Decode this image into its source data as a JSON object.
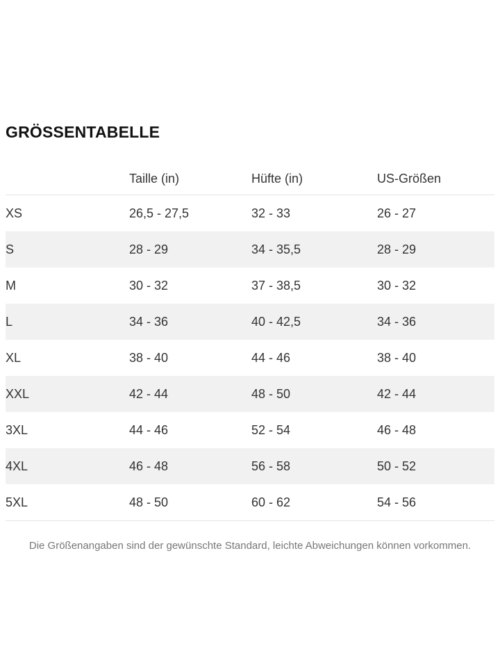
{
  "page": {
    "title": "GRÖSSENTABELLE",
    "footer_note": "Die Größenangaben sind der gewünschte Standard, leichte Abweichungen können vorkommen."
  },
  "table": {
    "headers": [
      "",
      "Taille (in)",
      "Hüfte (in)",
      "US-Größen"
    ],
    "rows": [
      {
        "size": "XS",
        "taille": "26,5 - 27,5",
        "huefte": "32 - 33",
        "us": "26 - 27"
      },
      {
        "size": "S",
        "taille": "28 - 29",
        "huefte": "34 - 35,5",
        "us": "28 - 29"
      },
      {
        "size": "M",
        "taille": "30 - 32",
        "huefte": "37 - 38,5",
        "us": "30 - 32"
      },
      {
        "size": "L",
        "taille": "34 - 36",
        "huefte": "40 - 42,5",
        "us": "34 - 36"
      },
      {
        "size": "XL",
        "taille": "38 - 40",
        "huefte": "44 - 46",
        "us": "38 - 40"
      },
      {
        "size": "XXL",
        "taille": "42 - 44",
        "huefte": "48 - 50",
        "us": "42 - 44"
      },
      {
        "size": "3XL",
        "taille": "44 - 46",
        "huefte": "52 - 54",
        "us": "46 - 48"
      },
      {
        "size": "4XL",
        "taille": "46 - 48",
        "huefte": "56 - 58",
        "us": "50 - 52"
      },
      {
        "size": "5XL",
        "taille": "48 - 50",
        "huefte": "60 - 62",
        "us": "54 - 56"
      }
    ]
  },
  "colors": {
    "background": "#ffffff",
    "row_alt_bg": "#f1f1f1",
    "divider": "#e4e4e4",
    "text_primary": "#333333",
    "text_title": "#111111",
    "text_muted": "#777777"
  }
}
